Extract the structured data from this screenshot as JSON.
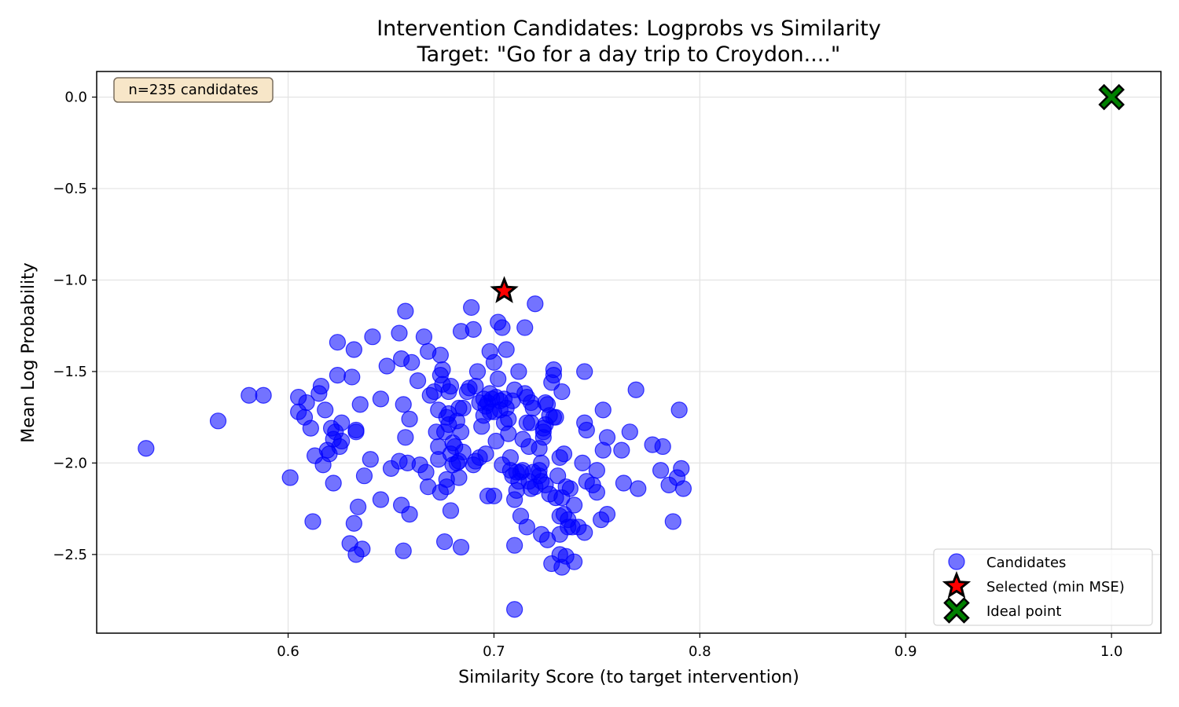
{
  "chart_data": {
    "type": "scatter",
    "title": "Intervention Candidates: Logprobs vs Similarity",
    "subtitle": "Target: \"Go for a day trip to Croydon....\"",
    "xlabel": "Similarity Score (to target intervention)",
    "ylabel": "Mean Log Probability",
    "xlim": [
      0.507,
      1.024
    ],
    "ylim": [
      -2.93,
      0.14
    ],
    "xticks": [
      0.6,
      0.7,
      0.8,
      0.9,
      1.0
    ],
    "xtick_labels": [
      "0.6",
      "0.7",
      "0.8",
      "0.9",
      "1.0"
    ],
    "yticks": [
      0.0,
      -0.5,
      -1.0,
      -1.5,
      -2.0,
      -2.5
    ],
    "ytick_labels": [
      "0.0",
      "−0.5",
      "−1.0",
      "−1.5",
      "−2.0",
      "−2.5"
    ],
    "grid": true,
    "legend_position": "lower-right",
    "annotation": "n=235 candidates",
    "colors": {
      "candidates": "#0000ff",
      "selected": "#ff0000",
      "ideal": "#008000",
      "annotation_bg": "#f7e6c8",
      "annotation_border": "#7a6e5e"
    },
    "series": [
      {
        "name": "Candidates",
        "marker": "circle",
        "points": [
          [
            0.531,
            -1.92
          ],
          [
            0.566,
            -1.77
          ],
          [
            0.581,
            -1.63
          ],
          [
            0.588,
            -1.63
          ],
          [
            0.601,
            -2.08
          ],
          [
            0.605,
            -1.64
          ],
          [
            0.605,
            -1.72
          ],
          [
            0.608,
            -1.75
          ],
          [
            0.609,
            -1.67
          ],
          [
            0.611,
            -1.81
          ],
          [
            0.612,
            -2.32
          ],
          [
            0.613,
            -1.96
          ],
          [
            0.615,
            -1.62
          ],
          [
            0.616,
            -1.58
          ],
          [
            0.617,
            -2.01
          ],
          [
            0.618,
            -1.71
          ],
          [
            0.619,
            -1.93
          ],
          [
            0.62,
            -1.95
          ],
          [
            0.621,
            -1.81
          ],
          [
            0.622,
            -2.11
          ],
          [
            0.622,
            -1.87
          ],
          [
            0.623,
            -1.83
          ],
          [
            0.624,
            -1.52
          ],
          [
            0.624,
            -1.34
          ],
          [
            0.625,
            -1.91
          ],
          [
            0.626,
            -1.88
          ],
          [
            0.626,
            -1.78
          ],
          [
            0.63,
            -2.44
          ],
          [
            0.631,
            -1.53
          ],
          [
            0.632,
            -1.38
          ],
          [
            0.632,
            -2.33
          ],
          [
            0.633,
            -1.83
          ],
          [
            0.633,
            -1.82
          ],
          [
            0.633,
            -2.5
          ],
          [
            0.634,
            -2.24
          ],
          [
            0.635,
            -1.68
          ],
          [
            0.636,
            -2.47
          ],
          [
            0.637,
            -2.07
          ],
          [
            0.64,
            -1.98
          ],
          [
            0.641,
            -1.31
          ],
          [
            0.645,
            -1.65
          ],
          [
            0.645,
            -2.2
          ],
          [
            0.648,
            -1.47
          ],
          [
            0.65,
            -2.03
          ],
          [
            0.654,
            -1.29
          ],
          [
            0.654,
            -1.99
          ],
          [
            0.655,
            -1.43
          ],
          [
            0.655,
            -2.23
          ],
          [
            0.656,
            -2.48
          ],
          [
            0.656,
            -1.68
          ],
          [
            0.657,
            -1.86
          ],
          [
            0.657,
            -1.17
          ],
          [
            0.658,
            -2.0
          ],
          [
            0.659,
            -2.28
          ],
          [
            0.659,
            -1.76
          ],
          [
            0.66,
            -1.45
          ],
          [
            0.663,
            -1.55
          ],
          [
            0.664,
            -2.01
          ],
          [
            0.666,
            -1.31
          ],
          [
            0.667,
            -2.05
          ],
          [
            0.668,
            -1.39
          ],
          [
            0.668,
            -2.13
          ],
          [
            0.669,
            -1.63
          ],
          [
            0.671,
            -1.61
          ],
          [
            0.672,
            -1.83
          ],
          [
            0.673,
            -1.98
          ],
          [
            0.673,
            -1.91
          ],
          [
            0.673,
            -1.71
          ],
          [
            0.674,
            -2.16
          ],
          [
            0.674,
            -1.52
          ],
          [
            0.674,
            -1.41
          ],
          [
            0.675,
            -1.49
          ],
          [
            0.675,
            -1.57
          ],
          [
            0.676,
            -2.43
          ],
          [
            0.676,
            -1.83
          ],
          [
            0.677,
            -1.75
          ],
          [
            0.677,
            -2.13
          ],
          [
            0.677,
            -2.09
          ],
          [
            0.678,
            -1.73
          ],
          [
            0.678,
            -1.61
          ],
          [
            0.678,
            -1.79
          ],
          [
            0.679,
            -1.58
          ],
          [
            0.679,
            -1.95
          ],
          [
            0.679,
            -2.26
          ],
          [
            0.68,
            -1.89
          ],
          [
            0.68,
            -2.01
          ],
          [
            0.681,
            -1.91
          ],
          [
            0.682,
            -1.77
          ],
          [
            0.682,
            -2.0
          ],
          [
            0.683,
            -1.99
          ],
          [
            0.683,
            -2.08
          ],
          [
            0.683,
            -1.7
          ],
          [
            0.684,
            -1.83
          ],
          [
            0.684,
            -1.28
          ],
          [
            0.684,
            -2.46
          ],
          [
            0.685,
            -1.7
          ],
          [
            0.685,
            -1.94
          ],
          [
            0.687,
            -1.61
          ],
          [
            0.688,
            -1.59
          ],
          [
            0.689,
            -1.15
          ],
          [
            0.69,
            -2.01
          ],
          [
            0.69,
            -1.27
          ],
          [
            0.691,
            -1.99
          ],
          [
            0.691,
            -1.58
          ],
          [
            0.692,
            -1.5
          ],
          [
            0.693,
            -1.97
          ],
          [
            0.693,
            -1.67
          ],
          [
            0.694,
            -1.8
          ],
          [
            0.695,
            -1.74
          ],
          [
            0.695,
            -1.65
          ],
          [
            0.696,
            -1.69
          ],
          [
            0.696,
            -1.95
          ],
          [
            0.697,
            -1.67
          ],
          [
            0.697,
            -2.18
          ],
          [
            0.698,
            -1.39
          ],
          [
            0.698,
            -1.72
          ],
          [
            0.698,
            -1.62
          ],
          [
            0.699,
            -1.65
          ],
          [
            0.7,
            -1.45
          ],
          [
            0.7,
            -1.72
          ],
          [
            0.7,
            -2.18
          ],
          [
            0.701,
            -1.64
          ],
          [
            0.701,
            -1.88
          ],
          [
            0.702,
            -1.54
          ],
          [
            0.702,
            -1.23
          ],
          [
            0.703,
            -1.66
          ],
          [
            0.703,
            -1.71
          ],
          [
            0.704,
            -2.01
          ],
          [
            0.704,
            -1.26
          ],
          [
            0.705,
            -1.65
          ],
          [
            0.705,
            -1.78
          ],
          [
            0.706,
            -1.7
          ],
          [
            0.706,
            -1.38
          ],
          [
            0.707,
            -1.84
          ],
          [
            0.707,
            -1.76
          ],
          [
            0.708,
            -1.97
          ],
          [
            0.708,
            -2.04
          ],
          [
            0.709,
            -1.66
          ],
          [
            0.709,
            -2.07
          ],
          [
            0.71,
            -2.45
          ],
          [
            0.71,
            -2.8
          ],
          [
            0.71,
            -1.6
          ],
          [
            0.71,
            -2.2
          ],
          [
            0.711,
            -2.15
          ],
          [
            0.711,
            -2.05
          ],
          [
            0.712,
            -1.5
          ],
          [
            0.712,
            -2.1
          ],
          [
            0.713,
            -2.29
          ],
          [
            0.713,
            -2.05
          ],
          [
            0.714,
            -1.87
          ],
          [
            0.714,
            -2.04
          ],
          [
            0.715,
            -1.26
          ],
          [
            0.715,
            -1.62
          ],
          [
            0.716,
            -1.78
          ],
          [
            0.716,
            -2.35
          ],
          [
            0.716,
            -1.64
          ],
          [
            0.717,
            -1.91
          ],
          [
            0.717,
            -2.1
          ],
          [
            0.718,
            -1.67
          ],
          [
            0.718,
            -2.14
          ],
          [
            0.718,
            -1.78
          ],
          [
            0.719,
            -1.7
          ],
          [
            0.719,
            -2.05
          ],
          [
            0.72,
            -1.13
          ],
          [
            0.72,
            -2.13
          ],
          [
            0.722,
            -2.07
          ],
          [
            0.722,
            -1.92
          ],
          [
            0.722,
            -2.04
          ],
          [
            0.723,
            -2.39
          ],
          [
            0.723,
            -2.1
          ],
          [
            0.723,
            -2.0
          ],
          [
            0.724,
            -1.86
          ],
          [
            0.724,
            -1.83
          ],
          [
            0.724,
            -1.81
          ],
          [
            0.725,
            -1.79
          ],
          [
            0.725,
            -2.12
          ],
          [
            0.725,
            -1.67
          ],
          [
            0.726,
            -2.42
          ],
          [
            0.726,
            -1.68
          ],
          [
            0.727,
            -1.74
          ],
          [
            0.727,
            -2.17
          ],
          [
            0.728,
            -2.55
          ],
          [
            0.728,
            -1.56
          ],
          [
            0.729,
            -1.49
          ],
          [
            0.729,
            -1.75
          ],
          [
            0.729,
            -1.52
          ],
          [
            0.73,
            -2.19
          ],
          [
            0.73,
            -1.75
          ],
          [
            0.731,
            -2.07
          ],
          [
            0.732,
            -1.97
          ],
          [
            0.732,
            -2.29
          ],
          [
            0.732,
            -2.5
          ],
          [
            0.732,
            -2.39
          ],
          [
            0.733,
            -2.57
          ],
          [
            0.733,
            -1.61
          ],
          [
            0.733,
            -2.19
          ],
          [
            0.734,
            -1.95
          ],
          [
            0.734,
            -2.28
          ],
          [
            0.735,
            -2.51
          ],
          [
            0.735,
            -2.13
          ],
          [
            0.736,
            -2.31
          ],
          [
            0.736,
            -2.35
          ],
          [
            0.737,
            -2.14
          ],
          [
            0.738,
            -2.35
          ],
          [
            0.739,
            -2.54
          ],
          [
            0.739,
            -2.23
          ],
          [
            0.741,
            -2.35
          ],
          [
            0.743,
            -2.0
          ],
          [
            0.744,
            -2.38
          ],
          [
            0.744,
            -1.78
          ],
          [
            0.744,
            -1.5
          ],
          [
            0.745,
            -2.1
          ],
          [
            0.745,
            -1.82
          ],
          [
            0.748,
            -2.12
          ],
          [
            0.75,
            -2.16
          ],
          [
            0.75,
            -2.04
          ],
          [
            0.752,
            -2.31
          ],
          [
            0.753,
            -1.93
          ],
          [
            0.753,
            -1.71
          ],
          [
            0.755,
            -1.86
          ],
          [
            0.755,
            -2.28
          ],
          [
            0.762,
            -1.93
          ],
          [
            0.763,
            -2.11
          ],
          [
            0.766,
            -1.83
          ],
          [
            0.769,
            -1.6
          ],
          [
            0.77,
            -2.14
          ],
          [
            0.777,
            -1.9
          ],
          [
            0.781,
            -2.04
          ],
          [
            0.782,
            -1.91
          ],
          [
            0.785,
            -2.12
          ],
          [
            0.787,
            -2.32
          ],
          [
            0.789,
            -2.08
          ],
          [
            0.79,
            -1.71
          ],
          [
            0.791,
            -2.03
          ],
          [
            0.792,
            -2.14
          ]
        ]
      },
      {
        "name": "Selected (min MSE)",
        "marker": "star",
        "points": [
          [
            0.705,
            -1.06
          ]
        ]
      },
      {
        "name": "Ideal point",
        "marker": "x",
        "points": [
          [
            1.0,
            0.0
          ]
        ]
      }
    ]
  }
}
